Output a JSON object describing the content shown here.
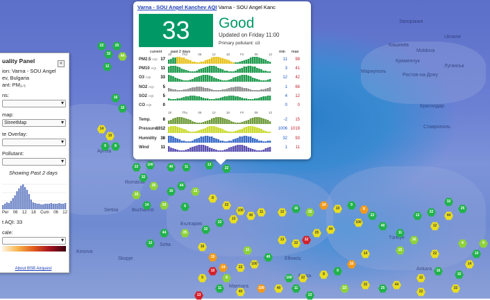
{
  "map": {
    "labels": [
      "Moldova",
      "Ukraine",
      "Кишинёв",
      "Луганськ",
      "Мариуполь",
      "Ростов-на-Дону",
      "Ставрополь",
      "România",
      "Bucharest",
      "България",
      "Sofia",
      "Serbia",
      "Skopje",
      "Türkiye",
      "Ankara",
      "Εθνικός",
      "Marmara",
      "Bursa",
      "Краснодар",
      "Аргеш",
      "Кременчук",
      "Запоріжжя",
      "Kosova"
    ],
    "pin_values": [
      "22",
      "32",
      "25",
      "44",
      "12",
      "16",
      "15",
      "14",
      "10",
      "9",
      "8",
      "22",
      "100",
      "40",
      "11",
      "13"
    ]
  },
  "panel": {
    "title": "uality Panel",
    "collapse_icon": "«",
    "station_line1": "ion: Varna - SOU Angel",
    "station_line2": "ev, Bulgaria",
    "pollutant_line": "ant: PM₂.₅",
    "stations_label": "ns:",
    "stations_value": "",
    "basemap_label": "map:",
    "basemap_value": "StreetMap",
    "overlay_label": "te Overlay:",
    "overlay_value": "",
    "pollutant_label": "Pollutant:",
    "pollutant_value": "",
    "showing_past": "Showing Past 2 days",
    "x_ticks": [
      "Per",
      "06",
      "12",
      "18",
      "Cum",
      "06",
      "12"
    ],
    "current_aqi": "t AQI: 33",
    "scale_label": "cale:",
    "scale_value": "",
    "about_link": "About BSB Airquest"
  },
  "popup": {
    "station_link": "Varna - SOU Angel Kanchev AQI",
    "station_sub": "Varna - SOU Angel Kanc",
    "aqi_value": "33",
    "status": "Good",
    "updated": "Updated on Friday 11:00",
    "primary": "Primary pollutant: o3",
    "hdr_current": "current",
    "hdr_past": "past 2 days",
    "hdr_min": "min",
    "hdr_max": "max",
    "days": [
      "18",
      "Thu",
      "06",
      "12",
      "18",
      "Fri",
      "06",
      "12"
    ],
    "rows": [
      {
        "name": "PM2.5",
        "unit": "AQI",
        "cur": "17",
        "min": "11",
        "max": "98",
        "color": "#e8c11a"
      },
      {
        "name": "PM10",
        "unit": "AQI",
        "cur": "11",
        "min": "3",
        "max": "41",
        "color": "#1f9a4d"
      },
      {
        "name": "O3",
        "unit": "AQI",
        "cur": "33",
        "min": "12",
        "max": "42",
        "color": "#1f9a4d"
      },
      {
        "name": "NO2",
        "unit": "AQI",
        "cur": "5",
        "min": "1",
        "max": "68",
        "color": "#8f8f8f"
      },
      {
        "name": "SO2",
        "unit": "AQI",
        "cur": "5",
        "min": "4",
        "max": "12",
        "color": "#1f9a4d"
      },
      {
        "name": "CO",
        "unit": "AQI",
        "cur": "0",
        "min": "0",
        "max": "0",
        "color": "#1f9a4d"
      },
      {
        "name": "Temp.",
        "unit": "",
        "cur": "8",
        "min": "-2",
        "max": "15",
        "color": "#6e9a3a"
      },
      {
        "name": "Pressure",
        "unit": "",
        "cur": "1012",
        "min": "1006",
        "max": "1019",
        "color": "#c9d92b"
      },
      {
        "name": "Humidity",
        "unit": "",
        "cur": "38",
        "min": "32",
        "max": "93",
        "color": "#3a6cc8"
      },
      {
        "name": "Wind",
        "unit": "",
        "cur": "11",
        "min": "1",
        "max": "11",
        "color": "#5a4fb0"
      }
    ]
  }
}
